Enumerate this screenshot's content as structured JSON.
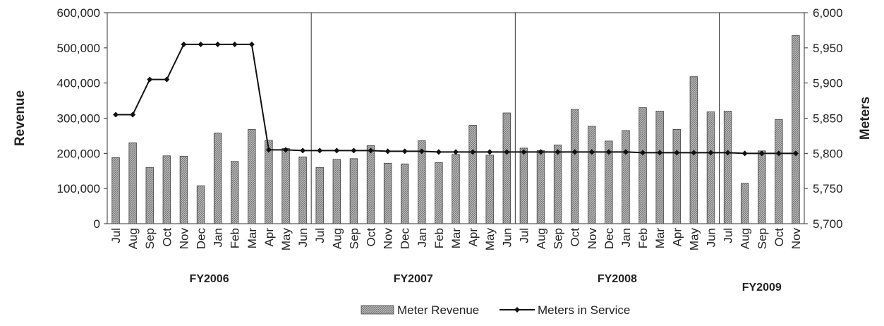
{
  "chart_data": {
    "type": "bar",
    "categories": [
      "Jul",
      "Aug",
      "Sep",
      "Oct",
      "Nov",
      "Dec",
      "Jan",
      "Feb",
      "Mar",
      "Apr",
      "May",
      "Jun",
      "Jul",
      "Aug",
      "Sep",
      "Oct",
      "Nov",
      "Dec",
      "Jan",
      "Feb",
      "Mar",
      "Apr",
      "May",
      "Jun",
      "Jul",
      "Aug",
      "Sep",
      "Oct",
      "Nov",
      "Dec",
      "Jan",
      "Feb",
      "Mar",
      "Apr",
      "May",
      "Jun",
      "Jul",
      "Aug",
      "Sep",
      "Oct",
      "Nov"
    ],
    "groups": [
      {
        "label": "FY2006",
        "start": 0,
        "count": 12
      },
      {
        "label": "FY2007",
        "start": 12,
        "count": 12
      },
      {
        "label": "FY2008",
        "start": 24,
        "count": 12
      },
      {
        "label": "FY2009",
        "start": 36,
        "count": 5
      }
    ],
    "series": [
      {
        "name": "Meter Revenue",
        "type": "bar",
        "axis": "left",
        "values": [
          188000,
          230000,
          160000,
          193000,
          192000,
          108000,
          258000,
          177000,
          268000,
          237000,
          214000,
          190000,
          160000,
          183000,
          185000,
          222000,
          172000,
          170000,
          236000,
          174000,
          197000,
          280000,
          195000,
          315000,
          215000,
          208000,
          224000,
          325000,
          277000,
          235000,
          265000,
          330000,
          320000,
          268000,
          418000,
          318000,
          320000,
          115000,
          207000,
          296000,
          535000
        ]
      },
      {
        "name": "Meters in Service",
        "type": "line",
        "axis": "right",
        "values": [
          5855,
          5855,
          5905,
          5905,
          5955,
          5955,
          5955,
          5955,
          5955,
          5805,
          5805,
          5804,
          5804,
          5804,
          5804,
          5804,
          5803,
          5803,
          5803,
          5802,
          5802,
          5802,
          5802,
          5802,
          5802,
          5802,
          5802,
          5802,
          5802,
          5802,
          5802,
          5801,
          5801,
          5801,
          5801,
          5801,
          5801,
          5800,
          5800,
          5800,
          5800
        ]
      }
    ],
    "ylabel": "Revenue",
    "y2label": "Meters",
    "ylim": [
      0,
      600000
    ],
    "y2lim": [
      5700,
      6000
    ],
    "yticks": [
      "0",
      "100,000",
      "200,000",
      "300,000",
      "400,000",
      "500,000",
      "600,000"
    ],
    "y2ticks": [
      "5,700",
      "5,750",
      "5,800",
      "5,850",
      "5,900",
      "5,950",
      "6,000"
    ],
    "legend_position": "bottom",
    "grid": false,
    "colors": {
      "bar": "#9a9a9a",
      "bar_edge": "#444444",
      "line": "#111111"
    }
  }
}
